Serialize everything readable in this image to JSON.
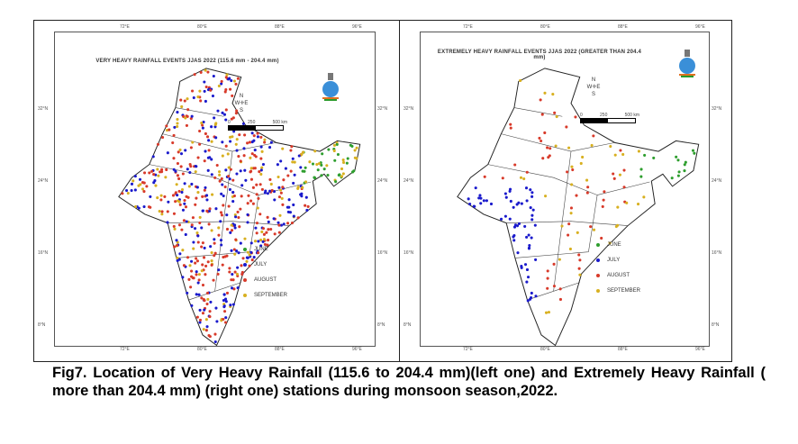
{
  "maps": [
    {
      "title": "VERY HEAVY RAINFALL EVENTS JJAS 2022 (115.6 mm - 204.4 mm)"
    },
    {
      "title": "EXTREMELY HEAVY RAINFALL EVENTS JJAS 2022 (GREATER THAN 204.4 mm)"
    }
  ],
  "longitude_ticks": [
    "72°E",
    "80°E",
    "88°E",
    "96°E"
  ],
  "latitude_ticks": [
    "32°N",
    "24°N",
    "16°N",
    "8°N"
  ],
  "compass": {
    "n": "N",
    "s": "S",
    "e": "E",
    "w": "W"
  },
  "scale_bar": {
    "labels": [
      "0",
      "250",
      "500 km"
    ]
  },
  "legend": [
    {
      "label": "JUNE",
      "color": "#2e9e2e"
    },
    {
      "label": "JULY",
      "color": "#1a1acc"
    },
    {
      "label": "AUGUST",
      "color": "#d83a2a"
    },
    {
      "label": "SEPTEMBER",
      "color": "#d8b020"
    }
  ],
  "caption": "Fig7. Location of Very Heavy Rainfall (115.6 to 204.4 mm)(left one) and Extremely Heavy Rainfall ( more than 204.4 mm) (right one) stations during monsoon season,2022."
}
